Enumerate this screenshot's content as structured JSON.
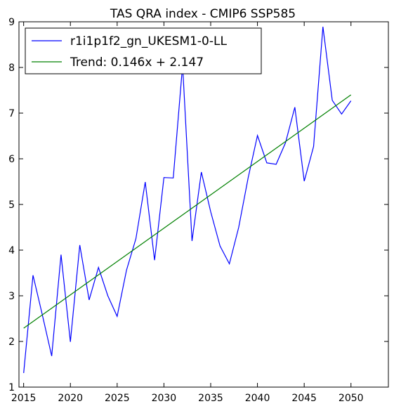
{
  "chart_data": {
    "type": "line",
    "title": "TAS QRA index - CMIP6 SSP585",
    "xlabel": "",
    "ylabel": "",
    "xlim": [
      2014.5,
      2054
    ],
    "ylim": [
      1,
      9
    ],
    "xticks": [
      2015,
      2020,
      2025,
      2030,
      2035,
      2040,
      2045,
      2050
    ],
    "yticks": [
      1,
      2,
      3,
      4,
      5,
      6,
      7,
      8,
      9
    ],
    "grid": false,
    "legend_position": "upper-left",
    "series": [
      {
        "name": "r1i1p1f2_gn_UKESM1-0-LL",
        "color": "#0000ff",
        "x": [
          2015,
          2016,
          2017,
          2018,
          2019,
          2020,
          2021,
          2022,
          2023,
          2024,
          2025,
          2026,
          2027,
          2028,
          2029,
          2030,
          2031,
          2032,
          2033,
          2034,
          2035,
          2036,
          2037,
          2038,
          2039,
          2040,
          2041,
          2042,
          2043,
          2044,
          2045,
          2046,
          2047,
          2048,
          2049,
          2050
        ],
        "y": [
          1.31,
          3.45,
          2.58,
          1.68,
          3.9,
          1.99,
          4.11,
          2.91,
          3.62,
          3.0,
          2.55,
          3.56,
          4.25,
          5.49,
          3.78,
          5.59,
          5.58,
          8.05,
          4.2,
          5.71,
          4.84,
          4.09,
          3.7,
          4.5,
          5.58,
          6.51,
          5.91,
          5.88,
          6.35,
          7.13,
          5.51,
          6.27,
          8.89,
          7.28,
          6.98,
          7.27
        ]
      },
      {
        "name": "Trend: 0.146x + 2.147",
        "color": "#008000",
        "x": [
          2015,
          2050
        ],
        "y": [
          2.29,
          7.4
        ]
      }
    ]
  }
}
